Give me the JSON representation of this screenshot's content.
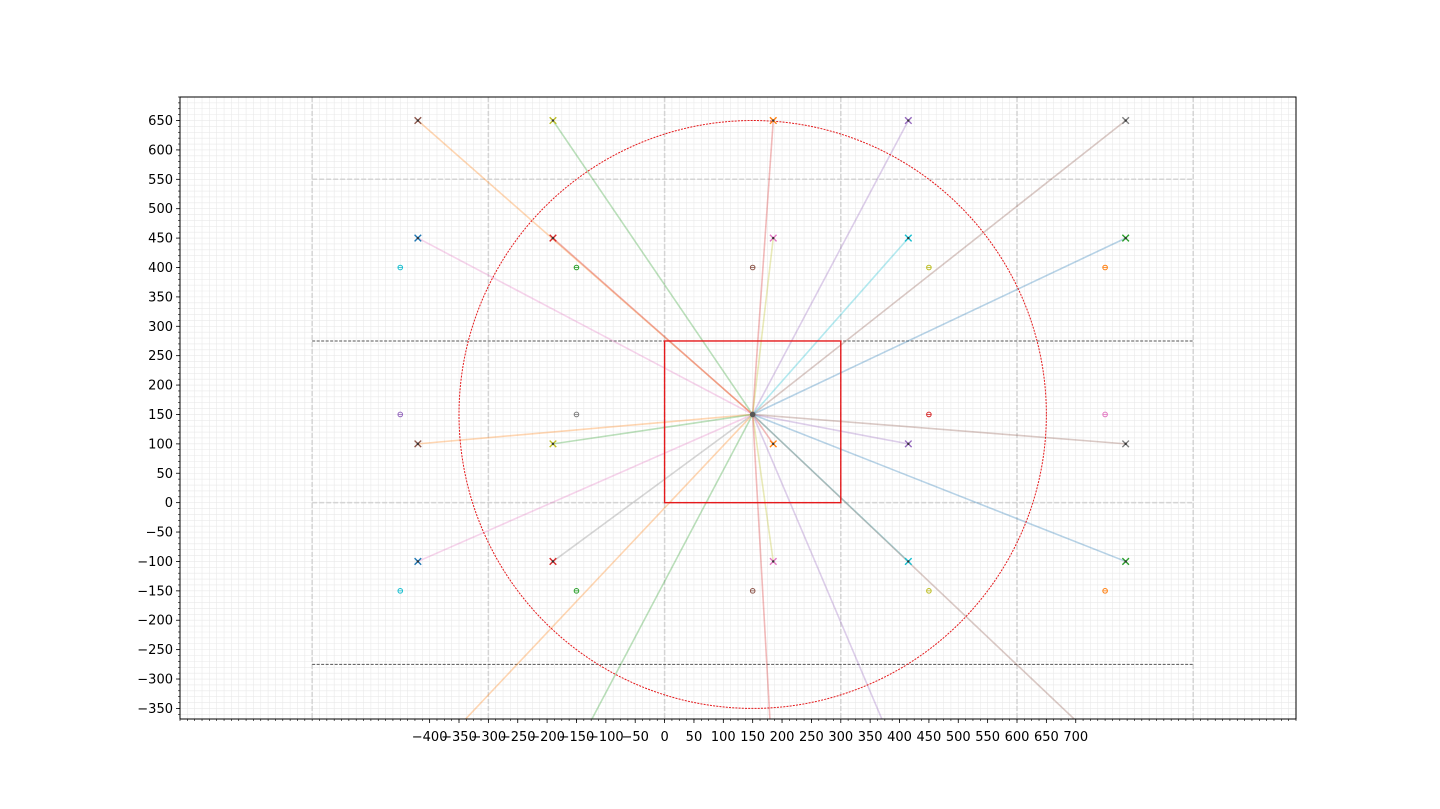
{
  "chart_data": {
    "type": "scatter",
    "title": "",
    "xlabel": "",
    "ylabel": "",
    "xlim": [
      -825,
      1075
    ],
    "ylim": [
      -368,
      690
    ],
    "grid": true,
    "legend": "none",
    "x_ticks": [
      -400,
      -350,
      -300,
      -250,
      -200,
      -150,
      -100,
      -50,
      0,
      50,
      100,
      150,
      200,
      250,
      300,
      350,
      400,
      450,
      500,
      550,
      600,
      650,
      700
    ],
    "x_tick_labels": [
      "−400",
      "−350",
      "−300",
      "−250",
      "−200",
      "−150",
      "−100",
      "−50",
      "0",
      "50",
      "100",
      "150",
      "200",
      "250",
      "300",
      "350",
      "400",
      "450",
      "500",
      "550",
      "600",
      "650",
      "700"
    ],
    "y_ticks": [
      -350,
      -300,
      -250,
      -200,
      -150,
      -100,
      -50,
      0,
      50,
      100,
      150,
      200,
      250,
      300,
      350,
      400,
      450,
      500,
      550,
      600,
      650
    ],
    "y_tick_labels": [
      "−350",
      "−300",
      "−250",
      "−200",
      "−150",
      "−100",
      "−50",
      "0",
      "50",
      "100",
      "150",
      "200",
      "250",
      "300",
      "350",
      "400",
      "450",
      "500",
      "550",
      "600",
      "650"
    ],
    "center": [
      150,
      150
    ],
    "rectangle": {
      "x": [
        0,
        300
      ],
      "y": [
        0,
        275
      ],
      "color": "#e41a1c"
    },
    "circle": {
      "center": [
        150,
        150
      ],
      "radius": 500,
      "color": "#e41a1c"
    },
    "hlines": [
      {
        "y": 275,
        "x": [
          -600,
          900
        ],
        "color": "#555555"
      },
      {
        "y": -275,
        "x": [
          -600,
          900
        ],
        "color": "#555555"
      }
    ],
    "light_hlines": [
      550,
      0
    ],
    "light_vlines": [
      -600,
      -300,
      0,
      300,
      600,
      900
    ],
    "rays": [
      {
        "to": [
          -420,
          650
        ],
        "color": "#ff7f0e"
      },
      {
        "to": [
          -190,
          650
        ],
        "color": "#2ca02c"
      },
      {
        "to": [
          185,
          650
        ],
        "color": "#d62728"
      },
      {
        "to": [
          415,
          650
        ],
        "color": "#9467bd"
      },
      {
        "to": [
          785,
          650
        ],
        "color": "#8c564b"
      },
      {
        "to": [
          -420,
          450
        ],
        "color": "#e377c2"
      },
      {
        "to": [
          -190,
          450
        ],
        "color": "#d62728"
      },
      {
        "to": [
          185,
          450
        ],
        "color": "#bcbd22"
      },
      {
        "to": [
          415,
          450
        ],
        "color": "#17becf"
      },
      {
        "to": [
          785,
          450
        ],
        "color": "#1f77b4"
      },
      {
        "to": [
          -420,
          100
        ],
        "color": "#ff7f0e"
      },
      {
        "to": [
          -190,
          100
        ],
        "color": "#2ca02c"
      },
      {
        "to": [
          185,
          100
        ],
        "color": "#d62728"
      },
      {
        "to": [
          415,
          100
        ],
        "color": "#9467bd"
      },
      {
        "to": [
          785,
          100
        ],
        "color": "#8c564b"
      },
      {
        "to": [
          -420,
          -100
        ],
        "color": "#e377c2"
      },
      {
        "to": [
          -190,
          -100
        ],
        "color": "#7f7f7f"
      },
      {
        "to": [
          185,
          -100
        ],
        "color": "#bcbd22"
      },
      {
        "to": [
          415,
          -100
        ],
        "color": "#17becf"
      },
      {
        "to": [
          785,
          -100
        ],
        "color": "#1f77b4"
      },
      {
        "to": [
          -350,
          -380
        ],
        "color": "#ff7f0e"
      },
      {
        "to": [
          -130,
          -380
        ],
        "color": "#2ca02c"
      },
      {
        "to": [
          180,
          -380
        ],
        "color": "#d62728"
      },
      {
        "to": [
          375,
          -380
        ],
        "color": "#9467bd"
      },
      {
        "to": [
          710,
          -380
        ],
        "color": "#8c564b"
      }
    ],
    "x_markers": [
      {
        "x": -420,
        "y": 650,
        "color": "#8c564b"
      },
      {
        "x": -190,
        "y": 650,
        "color": "#bcbd22"
      },
      {
        "x": 185,
        "y": 650,
        "color": "#ff7f0e"
      },
      {
        "x": 415,
        "y": 650,
        "color": "#9467bd"
      },
      {
        "x": 785,
        "y": 650,
        "color": "#7f7f7f"
      },
      {
        "x": -420,
        "y": 450,
        "color": "#1f77b4"
      },
      {
        "x": -190,
        "y": 450,
        "color": "#d62728"
      },
      {
        "x": 185,
        "y": 450,
        "color": "#e377c2"
      },
      {
        "x": 415,
        "y": 450,
        "color": "#17becf"
      },
      {
        "x": 785,
        "y": 450,
        "color": "#2ca02c"
      },
      {
        "x": -420,
        "y": 100,
        "color": "#8c564b"
      },
      {
        "x": -190,
        "y": 100,
        "color": "#bcbd22"
      },
      {
        "x": 185,
        "y": 100,
        "color": "#ff7f0e"
      },
      {
        "x": 415,
        "y": 100,
        "color": "#9467bd"
      },
      {
        "x": 785,
        "y": 100,
        "color": "#7f7f7f"
      },
      {
        "x": -420,
        "y": -100,
        "color": "#1f77b4"
      },
      {
        "x": -190,
        "y": -100,
        "color": "#d62728"
      },
      {
        "x": 185,
        "y": -100,
        "color": "#e377c2"
      },
      {
        "x": 415,
        "y": -100,
        "color": "#17becf"
      },
      {
        "x": 785,
        "y": -100,
        "color": "#2ca02c"
      }
    ],
    "dot_markers": [
      {
        "x": -450,
        "y": 400,
        "color": "#17becf"
      },
      {
        "x": -150,
        "y": 400,
        "color": "#2ca02c"
      },
      {
        "x": 150,
        "y": 400,
        "color": "#8c564b"
      },
      {
        "x": 450,
        "y": 400,
        "color": "#bcbd22"
      },
      {
        "x": 750,
        "y": 400,
        "color": "#ff7f0e"
      },
      {
        "x": -450,
        "y": 150,
        "color": "#9467bd"
      },
      {
        "x": -150,
        "y": 150,
        "color": "#7f7f7f"
      },
      {
        "x": 150,
        "y": 150,
        "color": "#7f7f7f"
      },
      {
        "x": 450,
        "y": 150,
        "color": "#d62728"
      },
      {
        "x": 750,
        "y": 150,
        "color": "#e377c2"
      },
      {
        "x": -450,
        "y": -150,
        "color": "#17becf"
      },
      {
        "x": -150,
        "y": -150,
        "color": "#2ca02c"
      },
      {
        "x": 150,
        "y": -150,
        "color": "#8c564b"
      },
      {
        "x": 450,
        "y": -150,
        "color": "#bcbd22"
      },
      {
        "x": 750,
        "y": -150,
        "color": "#ff7f0e"
      }
    ]
  }
}
